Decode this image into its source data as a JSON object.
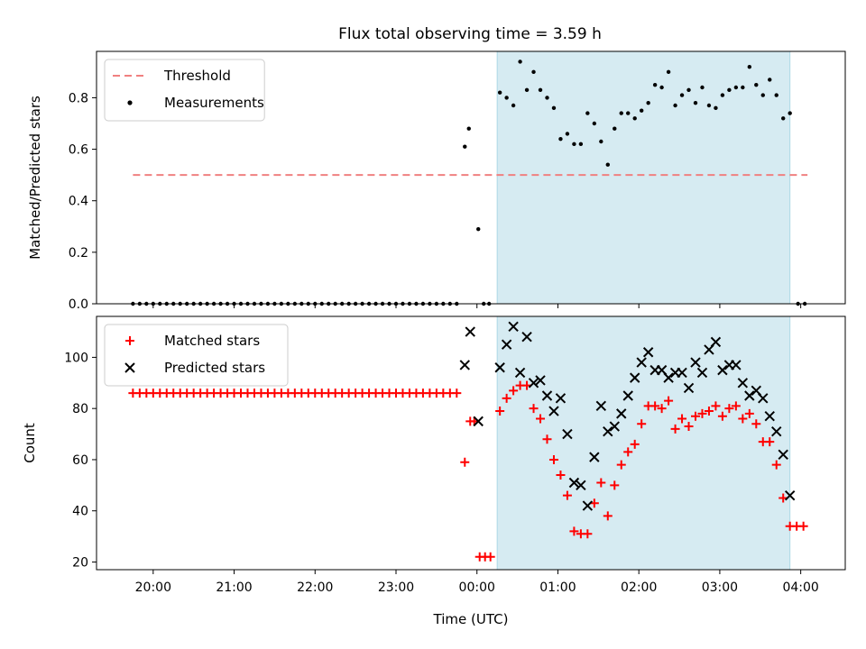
{
  "figure": {
    "title": "Flux total observing time = 3.59 h"
  },
  "chart_data": [
    {
      "type": "scatter",
      "ylabel": "Matched/Predicted stars",
      "xlabel": "",
      "ylim": [
        0,
        0.98
      ],
      "yticks": [
        "0.0",
        "0.2",
        "0.4",
        "0.6",
        "0.8"
      ],
      "shaded_span": [
        "00:15",
        "03:52"
      ],
      "legend_position": "upper left",
      "threshold": {
        "name": "Threshold",
        "value": 0.5,
        "x": [
          "19:45",
          "04:05"
        ],
        "color": "#f08080"
      },
      "series": [
        {
          "name": "Measurements",
          "color": "#000000",
          "points": [
            [
              "19:45",
              0
            ],
            [
              "19:50",
              0
            ],
            [
              "19:55",
              0
            ],
            [
              "20:00",
              0
            ],
            [
              "20:05",
              0
            ],
            [
              "20:10",
              0
            ],
            [
              "20:15",
              0
            ],
            [
              "20:20",
              0
            ],
            [
              "20:25",
              0
            ],
            [
              "20:30",
              0
            ],
            [
              "20:35",
              0
            ],
            [
              "20:40",
              0
            ],
            [
              "20:45",
              0
            ],
            [
              "20:50",
              0
            ],
            [
              "20:55",
              0
            ],
            [
              "21:00",
              0
            ],
            [
              "21:05",
              0
            ],
            [
              "21:10",
              0
            ],
            [
              "21:15",
              0
            ],
            [
              "21:20",
              0
            ],
            [
              "21:25",
              0
            ],
            [
              "21:30",
              0
            ],
            [
              "21:35",
              0
            ],
            [
              "21:40",
              0
            ],
            [
              "21:45",
              0
            ],
            [
              "21:50",
              0
            ],
            [
              "21:55",
              0
            ],
            [
              "22:00",
              0
            ],
            [
              "22:05",
              0
            ],
            [
              "22:10",
              0
            ],
            [
              "22:15",
              0
            ],
            [
              "22:20",
              0
            ],
            [
              "22:25",
              0
            ],
            [
              "22:30",
              0
            ],
            [
              "22:35",
              0
            ],
            [
              "22:40",
              0
            ],
            [
              "22:45",
              0
            ],
            [
              "22:50",
              0
            ],
            [
              "22:55",
              0
            ],
            [
              "23:00",
              0
            ],
            [
              "23:05",
              0
            ],
            [
              "23:10",
              0
            ],
            [
              "23:15",
              0
            ],
            [
              "23:20",
              0
            ],
            [
              "23:25",
              0
            ],
            [
              "23:30",
              0
            ],
            [
              "23:35",
              0
            ],
            [
              "23:40",
              0
            ],
            [
              "23:45",
              0
            ],
            [
              "23:51",
              0.61
            ],
            [
              "23:54",
              0.68
            ],
            [
              "00:01",
              0.29
            ],
            [
              "00:05",
              0
            ],
            [
              "00:09",
              0
            ],
            [
              "00:17",
              0.82
            ],
            [
              "00:22",
              0.8
            ],
            [
              "00:27",
              0.77
            ],
            [
              "00:32",
              0.94
            ],
            [
              "00:37",
              0.83
            ],
            [
              "00:42",
              0.9
            ],
            [
              "00:47",
              0.83
            ],
            [
              "00:52",
              0.8
            ],
            [
              "00:57",
              0.76
            ],
            [
              "01:02",
              0.64
            ],
            [
              "01:07",
              0.66
            ],
            [
              "01:12",
              0.62
            ],
            [
              "01:17",
              0.62
            ],
            [
              "01:22",
              0.74
            ],
            [
              "01:27",
              0.7
            ],
            [
              "01:32",
              0.63
            ],
            [
              "01:37",
              0.54
            ],
            [
              "01:42",
              0.68
            ],
            [
              "01:47",
              0.74
            ],
            [
              "01:52",
              0.74
            ],
            [
              "01:57",
              0.72
            ],
            [
              "02:02",
              0.75
            ],
            [
              "02:07",
              0.78
            ],
            [
              "02:12",
              0.85
            ],
            [
              "02:17",
              0.84
            ],
            [
              "02:22",
              0.9
            ],
            [
              "02:27",
              0.77
            ],
            [
              "02:32",
              0.81
            ],
            [
              "02:37",
              0.83
            ],
            [
              "02:42",
              0.78
            ],
            [
              "02:47",
              0.84
            ],
            [
              "02:52",
              0.77
            ],
            [
              "02:57",
              0.76
            ],
            [
              "03:02",
              0.81
            ],
            [
              "03:07",
              0.83
            ],
            [
              "03:12",
              0.84
            ],
            [
              "03:17",
              0.84
            ],
            [
              "03:22",
              0.92
            ],
            [
              "03:27",
              0.85
            ],
            [
              "03:32",
              0.81
            ],
            [
              "03:37",
              0.87
            ],
            [
              "03:42",
              0.81
            ],
            [
              "03:47",
              0.72
            ],
            [
              "03:52",
              0.74
            ],
            [
              "03:58",
              0
            ],
            [
              "04:03",
              0
            ]
          ]
        }
      ]
    },
    {
      "type": "scatter",
      "xlabel": "Time (UTC)",
      "ylabel": "Count",
      "ylim": [
        17,
        116
      ],
      "yticks": [
        "20",
        "40",
        "60",
        "80",
        "100"
      ],
      "xticks": [
        "20:00",
        "21:00",
        "22:00",
        "23:00",
        "00:00",
        "01:00",
        "02:00",
        "03:00",
        "04:00"
      ],
      "shaded_span": [
        "00:15",
        "03:52"
      ],
      "legend_position": "upper left",
      "series": [
        {
          "name": "Matched stars",
          "marker": "plus",
          "color": "#ff0000",
          "points": [
            [
              "19:45",
              86
            ],
            [
              "19:50",
              86
            ],
            [
              "19:55",
              86
            ],
            [
              "20:00",
              86
            ],
            [
              "20:05",
              86
            ],
            [
              "20:10",
              86
            ],
            [
              "20:15",
              86
            ],
            [
              "20:20",
              86
            ],
            [
              "20:25",
              86
            ],
            [
              "20:30",
              86
            ],
            [
              "20:35",
              86
            ],
            [
              "20:40",
              86
            ],
            [
              "20:45",
              86
            ],
            [
              "20:50",
              86
            ],
            [
              "20:55",
              86
            ],
            [
              "21:00",
              86
            ],
            [
              "21:05",
              86
            ],
            [
              "21:10",
              86
            ],
            [
              "21:15",
              86
            ],
            [
              "21:20",
              86
            ],
            [
              "21:25",
              86
            ],
            [
              "21:30",
              86
            ],
            [
              "21:35",
              86
            ],
            [
              "21:40",
              86
            ],
            [
              "21:45",
              86
            ],
            [
              "21:50",
              86
            ],
            [
              "21:55",
              86
            ],
            [
              "22:00",
              86
            ],
            [
              "22:05",
              86
            ],
            [
              "22:10",
              86
            ],
            [
              "22:15",
              86
            ],
            [
              "22:20",
              86
            ],
            [
              "22:25",
              86
            ],
            [
              "22:30",
              86
            ],
            [
              "22:35",
              86
            ],
            [
              "22:40",
              86
            ],
            [
              "22:45",
              86
            ],
            [
              "22:50",
              86
            ],
            [
              "22:55",
              86
            ],
            [
              "23:00",
              86
            ],
            [
              "23:05",
              86
            ],
            [
              "23:10",
              86
            ],
            [
              "23:15",
              86
            ],
            [
              "23:20",
              86
            ],
            [
              "23:25",
              86
            ],
            [
              "23:30",
              86
            ],
            [
              "23:35",
              86
            ],
            [
              "23:40",
              86
            ],
            [
              "23:45",
              86
            ],
            [
              "23:51",
              59
            ],
            [
              "23:55",
              75
            ],
            [
              "23:58",
              75
            ],
            [
              "00:02",
              22
            ],
            [
              "00:06",
              22
            ],
            [
              "00:10",
              22
            ],
            [
              "00:17",
              79
            ],
            [
              "00:22",
              84
            ],
            [
              "00:27",
              87
            ],
            [
              "00:32",
              89
            ],
            [
              "00:37",
              89
            ],
            [
              "00:42",
              80
            ],
            [
              "00:47",
              76
            ],
            [
              "00:52",
              68
            ],
            [
              "00:57",
              60
            ],
            [
              "01:02",
              54
            ],
            [
              "01:07",
              46
            ],
            [
              "01:12",
              32
            ],
            [
              "01:17",
              31
            ],
            [
              "01:22",
              31
            ],
            [
              "01:27",
              43
            ],
            [
              "01:32",
              51
            ],
            [
              "01:37",
              38
            ],
            [
              "01:42",
              50
            ],
            [
              "01:47",
              58
            ],
            [
              "01:52",
              63
            ],
            [
              "01:57",
              66
            ],
            [
              "02:02",
              74
            ],
            [
              "02:07",
              81
            ],
            [
              "02:12",
              81
            ],
            [
              "02:17",
              80
            ],
            [
              "02:22",
              83
            ],
            [
              "02:27",
              72
            ],
            [
              "02:32",
              76
            ],
            [
              "02:37",
              73
            ],
            [
              "02:42",
              77
            ],
            [
              "02:47",
              78
            ],
            [
              "02:52",
              79
            ],
            [
              "02:57",
              81
            ],
            [
              "03:02",
              77
            ],
            [
              "03:07",
              80
            ],
            [
              "03:12",
              81
            ],
            [
              "03:17",
              76
            ],
            [
              "03:22",
              78
            ],
            [
              "03:27",
              74
            ],
            [
              "03:32",
              67
            ],
            [
              "03:37",
              67
            ],
            [
              "03:42",
              58
            ],
            [
              "03:47",
              45
            ],
            [
              "03:52",
              34
            ],
            [
              "03:57",
              34
            ],
            [
              "04:02",
              34
            ]
          ]
        },
        {
          "name": "Predicted stars",
          "marker": "x",
          "color": "#000000",
          "points": [
            [
              "23:51",
              97
            ],
            [
              "23:55",
              110
            ],
            [
              "00:01",
              75
            ],
            [
              "00:17",
              96
            ],
            [
              "00:22",
              105
            ],
            [
              "00:27",
              112
            ],
            [
              "00:32",
              94
            ],
            [
              "00:37",
              108
            ],
            [
              "00:42",
              90
            ],
            [
              "00:47",
              91
            ],
            [
              "00:52",
              85
            ],
            [
              "00:57",
              79
            ],
            [
              "01:02",
              84
            ],
            [
              "01:07",
              70
            ],
            [
              "01:12",
              51
            ],
            [
              "01:17",
              50
            ],
            [
              "01:22",
              42
            ],
            [
              "01:27",
              61
            ],
            [
              "01:32",
              81
            ],
            [
              "01:37",
              71
            ],
            [
              "01:42",
              73
            ],
            [
              "01:47",
              78
            ],
            [
              "01:52",
              85
            ],
            [
              "01:57",
              92
            ],
            [
              "02:02",
              98
            ],
            [
              "02:07",
              102
            ],
            [
              "02:12",
              95
            ],
            [
              "02:17",
              95
            ],
            [
              "02:22",
              92
            ],
            [
              "02:27",
              94
            ],
            [
              "02:32",
              94
            ],
            [
              "02:37",
              88
            ],
            [
              "02:42",
              98
            ],
            [
              "02:47",
              94
            ],
            [
              "02:52",
              103
            ],
            [
              "02:57",
              106
            ],
            [
              "03:02",
              95
            ],
            [
              "03:07",
              97
            ],
            [
              "03:12",
              97
            ],
            [
              "03:17",
              90
            ],
            [
              "03:22",
              85
            ],
            [
              "03:27",
              87
            ],
            [
              "03:32",
              84
            ],
            [
              "03:37",
              77
            ],
            [
              "03:42",
              71
            ],
            [
              "03:47",
              62
            ],
            [
              "03:52",
              46
            ]
          ]
        }
      ]
    }
  ]
}
